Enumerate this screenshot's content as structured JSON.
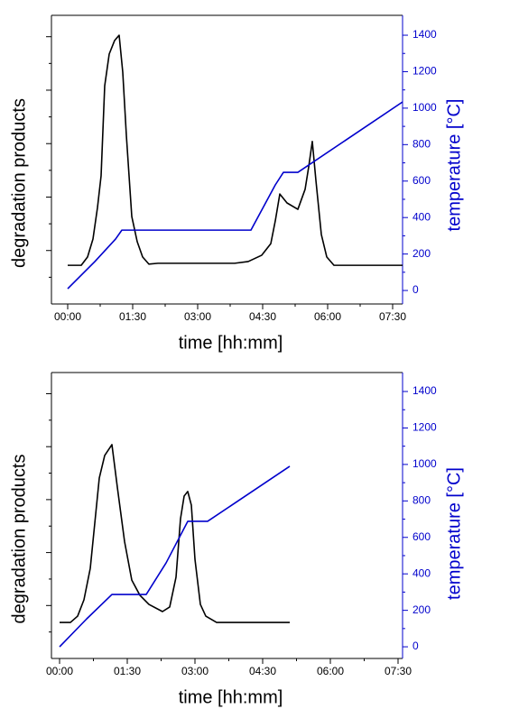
{
  "chart_data": [
    {
      "type": "line",
      "xlabel": "time [hh:mm]",
      "ylabel": "degradation products",
      "y2label": "temperature [°C]",
      "xlim": [
        -22.5,
        463.75
      ],
      "xticks": [
        {
          "value": 0,
          "label": "00:00"
        },
        {
          "value": 90,
          "label": "01:30"
        },
        {
          "value": 180,
          "label": "03:00"
        },
        {
          "value": 270,
          "label": "04:30"
        },
        {
          "value": 360,
          "label": "06:00"
        },
        {
          "value": 450,
          "label": "07:30"
        }
      ],
      "ylim": [
        0,
        100
      ],
      "y2lim": [
        -74,
        1509
      ],
      "y2ticks": [
        0,
        200,
        400,
        600,
        800,
        1000,
        1200,
        1400
      ],
      "series": [
        {
          "color": "#000000",
          "x": [
            0,
            18.75,
            27.5,
            35,
            41.25,
            46.25,
            51.25,
            57.5,
            65,
            71.25,
            76.25,
            81.25,
            88.75,
            96.25,
            103.75,
            112.5,
            125,
            231.25,
            250,
            268.75,
            281.25,
            287.5,
            293.75,
            303.75,
            318.75,
            328.75,
            333.75,
            338.75,
            343.75,
            351.25,
            358.75,
            368.75,
            463.75
          ],
          "values": [
            13.4,
            13.4,
            16.3,
            22.5,
            33.4,
            44.4,
            75.6,
            86.6,
            91.3,
            93.1,
            80.3,
            58.4,
            30.3,
            21.6,
            16.3,
            13.8,
            14.1,
            14.1,
            14.7,
            16.9,
            20.9,
            28.8,
            38.1,
            35,
            32.8,
            39.7,
            47.5,
            56.3,
            42.8,
            24.1,
            16.3,
            13.4,
            13.4
          ]
        },
        {
          "color": "#0000cc",
          "axis": "y2",
          "x": [
            0,
            37.5,
            66.25,
            75,
            253.75,
            287.5,
            298.75,
            318.75,
            463.75
          ],
          "values": [
            10,
            158,
            282,
            331,
            331,
            579,
            648,
            648,
            1034
          ]
        }
      ]
    },
    {
      "type": "line",
      "xlabel": "time [hh:mm]",
      "ylabel": "degradation products",
      "y2label": "temperature [°C]",
      "xlim": [
        -10.8,
        456
      ],
      "xticks": [
        {
          "value": 0,
          "label": "00:00"
        },
        {
          "value": 90,
          "label": "01:30"
        },
        {
          "value": 180,
          "label": "03:00"
        },
        {
          "value": 270,
          "label": "04:30"
        },
        {
          "value": 360,
          "label": "06:00"
        },
        {
          "value": 450,
          "label": "07:30"
        }
      ],
      "ylim": [
        0,
        100
      ],
      "y2lim": [
        -64,
        1504
      ],
      "y2ticks": [
        0,
        200,
        400,
        600,
        800,
        1000,
        1200,
        1400
      ],
      "series": [
        {
          "color": "#000000",
          "x": [
            0,
            14.4,
            24,
            32.4,
            40.8,
            46.8,
            52.8,
            60,
            69.6,
            76.8,
            86.4,
            96,
            106.8,
            118.8,
            136.8,
            146.4,
            154.8,
            160.8,
            165.6,
            170.4,
            175.2,
            180,
            187.2,
            194.4,
            208.8,
            306
          ],
          "values": [
            12.6,
            12.6,
            14.8,
            20.5,
            31.5,
            47.3,
            63.1,
            71,
            74.8,
            59.9,
            40.9,
            27.4,
            22.1,
            18.9,
            16.4,
            18,
            28.4,
            48.9,
            56.8,
            58.4,
            53.6,
            34.7,
            18.9,
            14.8,
            12.6,
            12.6
          ]
        },
        {
          "color": "#0000cc",
          "axis": "y2",
          "x": [
            0,
            36,
            69.6,
            115.2,
            141.6,
            170.4,
            196.8,
            306
          ],
          "values": [
            0,
            153,
            287,
            287,
            460,
            688,
            688,
            990
          ]
        }
      ]
    }
  ]
}
